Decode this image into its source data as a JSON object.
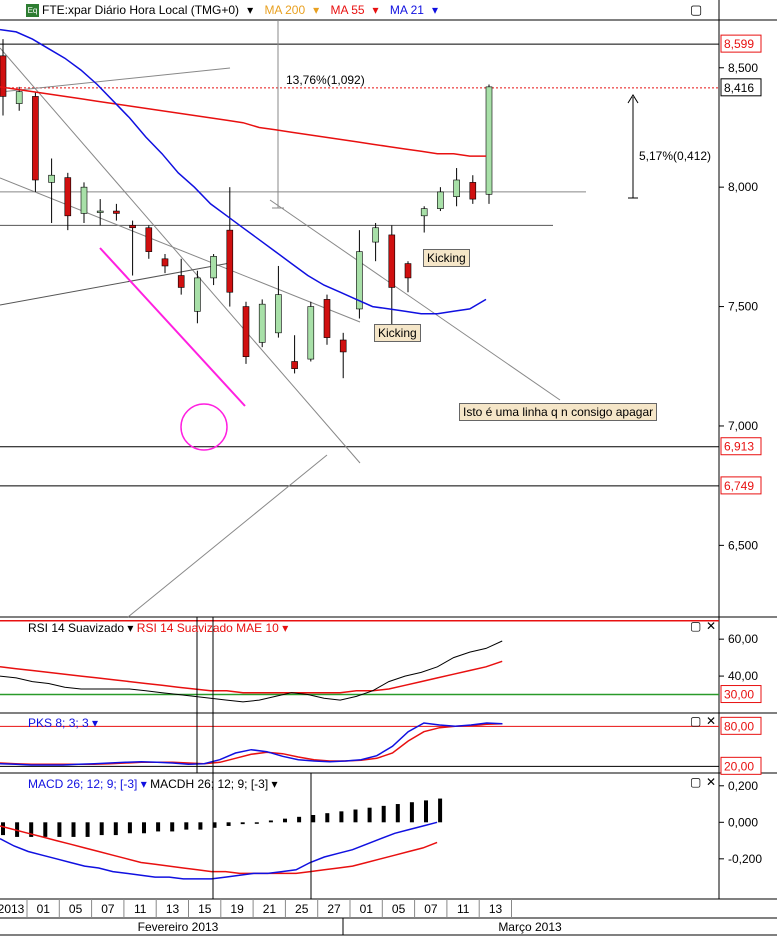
{
  "header": {
    "icon_label": "Eq",
    "instrument": "FTE:xpar Diário Hora Local (TMG+0)",
    "ma200": "MA 200",
    "ma55": "MA 55",
    "ma21": "MA 21",
    "dropdown_glyph": "▾",
    "window_glyph": "▢",
    "close_glyph": "✕"
  },
  "colors": {
    "up": "#a8e0a8",
    "down": "#d01010",
    "ma200": "#e8a020",
    "ma55": "#e81010",
    "ma21": "#1010e0",
    "magenta": "#ff20e0",
    "rsi": "#000000",
    "rsi_ma": "#e81010",
    "pks_k": "#1010e0",
    "pks_d": "#e81010",
    "macd": "#1010e0",
    "macd_signal": "#e81010"
  },
  "annotations": {
    "measure_pct": "13,76%(1,092)",
    "measure_pct2": "5,17%(0,412)",
    "kicking1": "Kicking",
    "kicking2": "Kicking",
    "note": "Isto é uma linha q n consigo apagar"
  },
  "price_axis": {
    "ticks": [
      "8,500",
      "8,000",
      "7,500",
      "7,000",
      "6,500"
    ],
    "tick_values": [
      8.5,
      8.0,
      7.5,
      7.0,
      6.5
    ],
    "range": [
      6.2,
      8.7
    ],
    "markers": [
      {
        "label": "8,599",
        "value": 8.599
      },
      {
        "label": "8,416",
        "value": 8.416
      },
      {
        "label": "6,913",
        "value": 6.913
      },
      {
        "label": "6,749",
        "value": 6.749
      }
    ]
  },
  "rsi": {
    "title": "RSI 14 Suavizado",
    "title2": "RSI 14 Suavizado MAE 10",
    "ticks": [
      "60,00",
      "40,00"
    ],
    "tick_values": [
      60,
      40
    ],
    "marker": "30,00",
    "marker_value": 30,
    "upper_level": 70,
    "range": [
      20,
      72
    ]
  },
  "pks": {
    "title": "PKS 8; 3; 3",
    "marker_hi": "80,00",
    "marker_lo": "20,00",
    "hi_value": 80,
    "lo_value": 20,
    "range": [
      10,
      100
    ]
  },
  "macd": {
    "title": "MACD 26; 12; 9; [-3]",
    "title2": "MACDH 26; 12; 9; [-3]",
    "ticks": [
      "0,200",
      "0,000",
      "-0,200"
    ],
    "tick_values": [
      0.2,
      0.0,
      -0.2
    ],
    "range": [
      -0.42,
      0.27
    ]
  },
  "time_axis": {
    "day_labels": [
      "2013",
      "01",
      "05",
      "07",
      "11",
      "13",
      "15",
      "19",
      "21",
      "25",
      "27",
      "01",
      "05",
      "07",
      "11",
      "13"
    ],
    "month_labels": [
      "Fevereiro 2013",
      "Março 2013"
    ]
  },
  "chart_data": {
    "type": "candlestick",
    "title": "FTE:xpar Diário Hora Local (TMG+0)",
    "candles": [
      {
        "o": 8.55,
        "h": 8.62,
        "l": 8.3,
        "c": 8.38
      },
      {
        "o": 8.35,
        "h": 8.42,
        "l": 8.32,
        "c": 8.4
      },
      {
        "o": 8.38,
        "h": 8.4,
        "l": 7.98,
        "c": 8.03
      },
      {
        "o": 8.02,
        "h": 8.12,
        "l": 7.85,
        "c": 8.05
      },
      {
        "o": 8.04,
        "h": 8.06,
        "l": 7.82,
        "c": 7.88
      },
      {
        "o": 7.89,
        "h": 8.02,
        "l": 7.85,
        "c": 8.0
      },
      {
        "o": 7.9,
        "h": 7.95,
        "l": 7.84,
        "c": 7.9
      },
      {
        "o": 7.9,
        "h": 7.93,
        "l": 7.86,
        "c": 7.89
      },
      {
        "o": 7.84,
        "h": 7.86,
        "l": 7.63,
        "c": 7.83
      },
      {
        "o": 7.83,
        "h": 7.84,
        "l": 7.7,
        "c": 7.73
      },
      {
        "o": 7.7,
        "h": 7.72,
        "l": 7.64,
        "c": 7.67
      },
      {
        "o": 7.63,
        "h": 7.7,
        "l": 7.55,
        "c": 7.58
      },
      {
        "o": 7.48,
        "h": 7.65,
        "l": 7.43,
        "c": 7.62
      },
      {
        "o": 7.62,
        "h": 7.72,
        "l": 7.59,
        "c": 7.71
      },
      {
        "o": 7.82,
        "h": 8.0,
        "l": 7.5,
        "c": 7.56
      },
      {
        "o": 7.5,
        "h": 7.52,
        "l": 7.26,
        "c": 7.29
      },
      {
        "o": 7.35,
        "h": 7.53,
        "l": 7.33,
        "c": 7.51
      },
      {
        "o": 7.39,
        "h": 7.67,
        "l": 7.37,
        "c": 7.55
      },
      {
        "o": 7.27,
        "h": 7.38,
        "l": 7.22,
        "c": 7.24
      },
      {
        "o": 7.28,
        "h": 7.52,
        "l": 7.27,
        "c": 7.5
      },
      {
        "o": 7.53,
        "h": 7.55,
        "l": 7.34,
        "c": 7.37
      },
      {
        "o": 7.36,
        "h": 7.39,
        "l": 7.2,
        "c": 7.31
      },
      {
        "o": 7.49,
        "h": 7.82,
        "l": 7.45,
        "c": 7.73
      },
      {
        "o": 7.77,
        "h": 7.85,
        "l": 7.69,
        "c": 7.83
      },
      {
        "o": 7.8,
        "h": 7.84,
        "l": 7.37,
        "c": 7.58
      },
      {
        "o": 7.68,
        "h": 7.69,
        "l": 7.56,
        "c": 7.62
      },
      {
        "o": 7.88,
        "h": 7.92,
        "l": 7.81,
        "c": 7.91
      },
      {
        "o": 7.91,
        "h": 8.0,
        "l": 7.9,
        "c": 7.98
      },
      {
        "o": 7.96,
        "h": 8.08,
        "l": 7.92,
        "c": 8.03
      },
      {
        "o": 8.02,
        "h": 8.05,
        "l": 7.93,
        "c": 7.95
      },
      {
        "o": 7.97,
        "h": 8.43,
        "l": 7.93,
        "c": 8.42
      }
    ],
    "series": [
      {
        "name": "MA 200"
      },
      {
        "name": "MA 55",
        "values": [
          8.42,
          8.41,
          8.4,
          8.39,
          8.38,
          8.37,
          8.36,
          8.35,
          8.34,
          8.33,
          8.32,
          8.31,
          8.3,
          8.29,
          8.28,
          8.27,
          8.25,
          8.24,
          8.23,
          8.22,
          8.21,
          8.2,
          8.19,
          8.18,
          8.17,
          8.16,
          8.15,
          8.14,
          8.14,
          8.13,
          8.13
        ]
      },
      {
        "name": "MA 21",
        "values": [
          8.66,
          8.65,
          8.62,
          8.58,
          8.54,
          8.49,
          8.43,
          8.36,
          8.29,
          8.21,
          8.14,
          8.06,
          8.0,
          7.93,
          7.88,
          7.83,
          7.78,
          7.73,
          7.68,
          7.63,
          7.59,
          7.56,
          7.53,
          7.5,
          7.49,
          7.48,
          7.47,
          7.47,
          7.48,
          7.49,
          7.53
        ]
      },
      {
        "name": "RSI 14 Suavizado",
        "values": [
          40,
          39,
          37,
          36,
          34,
          33,
          33,
          33,
          33,
          32,
          31,
          30,
          29,
          28,
          27,
          26,
          27,
          29,
          31,
          30,
          28,
          27,
          29,
          32,
          37,
          40,
          42,
          45,
          50,
          53,
          55,
          59
        ]
      },
      {
        "name": "RSI 14 Suavizado MAE 10",
        "values": [
          45,
          44,
          43,
          42,
          41,
          40,
          39,
          38,
          37,
          36,
          35,
          34,
          33,
          32,
          32,
          31,
          31,
          31,
          31,
          31,
          31,
          31,
          32,
          32,
          33,
          35,
          37,
          39,
          41,
          43,
          45,
          48
        ]
      },
      {
        "name": "PKS 8; 3; 3 %K",
        "values": [
          24,
          23,
          22,
          22,
          22,
          23,
          24,
          25,
          26,
          27,
          26,
          25,
          23,
          24,
          30,
          40,
          45,
          42,
          35,
          30,
          28,
          27,
          28,
          30,
          36,
          50,
          72,
          85,
          82,
          80,
          82,
          85,
          84
        ]
      },
      {
        "name": "PKS 8; 3; 3 %D",
        "values": [
          25,
          24,
          23,
          23,
          23,
          23,
          23,
          24,
          25,
          26,
          26,
          26,
          25,
          24,
          26,
          32,
          38,
          41,
          39,
          34,
          30,
          28,
          28,
          29,
          32,
          40,
          58,
          72,
          78,
          80,
          81,
          83,
          84
        ]
      },
      {
        "name": "MACD 26; 12; 9; [-3]",
        "values": [
          -0.09,
          -0.13,
          -0.16,
          -0.18,
          -0.2,
          -0.22,
          -0.24,
          -0.25,
          -0.27,
          -0.28,
          -0.29,
          -0.3,
          -0.3,
          -0.31,
          -0.31,
          -0.31,
          -0.3,
          -0.29,
          -0.28,
          -0.28,
          -0.27,
          -0.26,
          -0.22,
          -0.19,
          -0.17,
          -0.15,
          -0.12,
          -0.09,
          -0.06,
          -0.04,
          -0.02,
          0.0
        ]
      },
      {
        "name": "MACD signal",
        "values": [
          -0.02,
          -0.04,
          -0.06,
          -0.08,
          -0.1,
          -0.12,
          -0.14,
          -0.16,
          -0.18,
          -0.2,
          -0.22,
          -0.23,
          -0.24,
          -0.25,
          -0.26,
          -0.27,
          -0.27,
          -0.28,
          -0.28,
          -0.28,
          -0.28,
          -0.28,
          -0.27,
          -0.26,
          -0.25,
          -0.24,
          -0.22,
          -0.2,
          -0.18,
          -0.16,
          -0.14,
          -0.11
        ]
      },
      {
        "name": "MACDH 26; 12; 9; [-3]",
        "values": [
          -0.07,
          -0.08,
          -0.08,
          -0.08,
          -0.08,
          -0.08,
          -0.08,
          -0.07,
          -0.07,
          -0.06,
          -0.06,
          -0.05,
          -0.05,
          -0.04,
          -0.04,
          -0.03,
          -0.02,
          -0.01,
          0.0,
          0.01,
          0.02,
          0.03,
          0.04,
          0.05,
          0.06,
          0.07,
          0.08,
          0.09,
          0.1,
          0.11,
          0.12,
          0.13
        ]
      }
    ]
  }
}
